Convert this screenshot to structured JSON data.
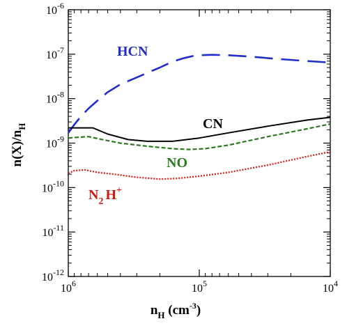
{
  "chart_data": {
    "type": "line",
    "title": "",
    "xlabel": {
      "base": "n",
      "sub": "H",
      "unit_open": " (cm",
      "unit_sup": "-3",
      "unit_close": ")"
    },
    "ylabel": {
      "main": "n(X)/n",
      "sub": "H"
    },
    "x_scale": "log",
    "y_scale": "log",
    "xlim": [
      1000000,
      10000
    ],
    "ylim": [
      1e-12,
      1e-06
    ],
    "x_ticks": [
      {
        "value": 1000000,
        "base": "10",
        "exp": "6"
      },
      {
        "value": 100000,
        "base": "10",
        "exp": "5"
      },
      {
        "value": 10000,
        "base": "10",
        "exp": "4"
      }
    ],
    "y_ticks": [
      {
        "value": 1e-06,
        "base": "10",
        "exp": "-6"
      },
      {
        "value": 1e-07,
        "base": "10",
        "exp": "-7"
      },
      {
        "value": 1e-08,
        "base": "10",
        "exp": "-8"
      },
      {
        "value": 1e-09,
        "base": "10",
        "exp": "-9"
      },
      {
        "value": 1e-10,
        "base": "10",
        "exp": "-10"
      },
      {
        "value": 1e-11,
        "base": "10",
        "exp": "-11"
      },
      {
        "value": 1e-12,
        "base": "10",
        "exp": "-12"
      }
    ],
    "grid": false,
    "series": [
      {
        "name": "HCN",
        "label": {
          "text": "HCN"
        },
        "color": "#1f2fc8",
        "style": "long-dash",
        "x": [
          1000000,
          900000,
          800000,
          700000,
          600000,
          500000,
          400000,
          300000,
          250000,
          200000,
          160000,
          130000,
          110000,
          100000,
          80000,
          60000,
          40000,
          25000,
          15000,
          10000
        ],
        "y": [
          1.7e-09,
          2.6e-09,
          4e-09,
          6e-09,
          9e-09,
          1.4e-08,
          2.1e-08,
          3e-08,
          3.8e-08,
          5e-08,
          6.8e-08,
          8.2e-08,
          9.2e-08,
          9.5e-08,
          9.7e-08,
          9.5e-08,
          8.8e-08,
          7.8e-08,
          7e-08,
          6.5e-08
        ]
      },
      {
        "name": "CN",
        "label": {
          "text": "CN"
        },
        "color": "#000000",
        "style": "solid",
        "x": [
          1000000,
          900000,
          650000,
          500000,
          350000,
          250000,
          160000,
          100000,
          60000,
          30000,
          15000,
          10000
        ],
        "y": [
          2.2e-09,
          2.2e-09,
          2.2e-09,
          1.6e-09,
          1.2e-09,
          1.1e-09,
          1.1e-09,
          1.3e-09,
          1.7e-09,
          2.4e-09,
          3.3e-09,
          3.8e-09
        ]
      },
      {
        "name": "NO",
        "label": {
          "text": "NO"
        },
        "color": "#2a7a1e",
        "style": "short-dash",
        "x": [
          1000000,
          850000,
          700000,
          550000,
          400000,
          250000,
          160000,
          120000,
          90000,
          60000,
          30000,
          15000,
          10000
        ],
        "y": [
          1.3e-09,
          1.35e-09,
          1.4e-09,
          1.2e-09,
          1e-09,
          8.5e-10,
          7.5e-10,
          7.2e-10,
          7.5e-10,
          9e-10,
          1.4e-09,
          2.1e-09,
          2.7e-09
        ]
      },
      {
        "name": "N2H+",
        "label": {
          "base": "N",
          "sub": "2",
          "mid": "H",
          "sup": "+"
        },
        "color": "#cc1a10",
        "style": "dotted",
        "x": [
          1000000,
          900000,
          750000,
          600000,
          450000,
          300000,
          200000,
          150000,
          100000,
          60000,
          30000,
          15000,
          10000
        ],
        "y": [
          2.1e-10,
          2.4e-10,
          2.5e-10,
          2.2e-10,
          2e-10,
          1.7e-10,
          1.55e-10,
          1.6e-10,
          1.8e-10,
          2.2e-10,
          3.2e-10,
          5e-10,
          6.4e-10
        ]
      }
    ]
  }
}
